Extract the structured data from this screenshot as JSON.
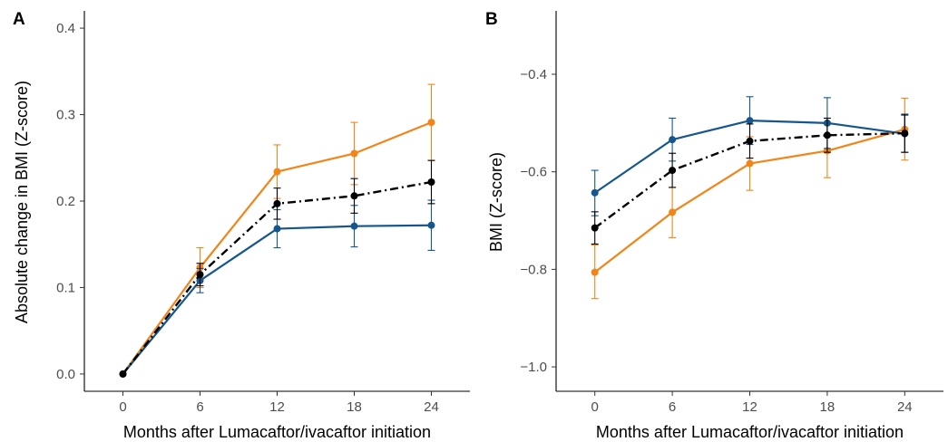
{
  "colors": {
    "orange": "#F28418",
    "blue": "#15568C",
    "black": "#000000",
    "tick_text": "#4d4d4d"
  },
  "chart_data": [
    {
      "type": "line",
      "panel_label": "A",
      "xlabel": "Months after Lumacaftor/ivacaftor initiation",
      "ylabel": "Absolute change in  BMI (Z-score)",
      "x": [
        0,
        6,
        12,
        18,
        24
      ],
      "x_ticks": [
        "0",
        "6",
        "12",
        "18",
        "24"
      ],
      "xlim": [
        -3,
        27
      ],
      "ylim": [
        -0.02,
        0.42
      ],
      "y_ticks": [
        0.0,
        0.1,
        0.2,
        0.3,
        0.4
      ],
      "y_tick_labels": [
        "0.0",
        "0.1",
        "0.2",
        "0.3",
        "0.4"
      ],
      "grid": false,
      "legend": "none",
      "series": [
        {
          "color": "orange",
          "style": "solid",
          "values": [
            0.0,
            0.123,
            0.234,
            0.255,
            0.291
          ],
          "err_low": [
            0.0,
            0.1,
            0.203,
            0.219,
            0.247
          ],
          "err_high": [
            0.0,
            0.146,
            0.265,
            0.291,
            0.335
          ]
        },
        {
          "color": "blue",
          "style": "solid",
          "values": [
            0.0,
            0.108,
            0.168,
            0.171,
            0.172
          ],
          "err_low": [
            0.0,
            0.094,
            0.146,
            0.147,
            0.143
          ],
          "err_high": [
            0.0,
            0.122,
            0.19,
            0.195,
            0.201
          ]
        },
        {
          "color": "black",
          "style": "dashdot",
          "values": [
            0.0,
            0.115,
            0.197,
            0.206,
            0.222
          ],
          "err_low": [
            0.0,
            0.102,
            0.179,
            0.186,
            0.197
          ],
          "err_high": [
            0.0,
            0.128,
            0.215,
            0.226,
            0.247
          ]
        }
      ]
    },
    {
      "type": "line",
      "panel_label": "B",
      "xlabel": "Months after Lumacaftor/ivacaftor initiation",
      "ylabel": "BMI (Z-score)",
      "x": [
        0,
        6,
        12,
        18,
        24
      ],
      "x_ticks": [
        "0",
        "6",
        "12",
        "18",
        "24"
      ],
      "xlim": [
        -3,
        27
      ],
      "ylim": [
        -1.05,
        -0.27
      ],
      "y_ticks": [
        -1.0,
        -0.8,
        -0.6,
        -0.4
      ],
      "y_tick_labels": [
        "−1.0",
        "−0.8",
        "−0.6",
        "−0.4"
      ],
      "grid": false,
      "legend": "none",
      "series": [
        {
          "color": "orange",
          "style": "solid",
          "values": [
            -0.806,
            -0.683,
            -0.583,
            -0.557,
            -0.513
          ],
          "err_low": [
            -0.86,
            -0.735,
            -0.638,
            -0.612,
            -0.576
          ],
          "err_high": [
            -0.75,
            -0.632,
            -0.528,
            -0.503,
            -0.449
          ]
        },
        {
          "color": "blue",
          "style": "solid",
          "values": [
            -0.643,
            -0.534,
            -0.495,
            -0.5,
            -0.522
          ],
          "err_low": [
            -0.69,
            -0.578,
            -0.544,
            -0.552,
            -0.56
          ],
          "err_high": [
            -0.597,
            -0.49,
            -0.446,
            -0.448,
            -0.484
          ]
        },
        {
          "color": "black",
          "style": "dashdot",
          "values": [
            -0.715,
            -0.597,
            -0.537,
            -0.525,
            -0.521
          ],
          "err_low": [
            -0.748,
            -0.632,
            -0.572,
            -0.56,
            -0.56
          ],
          "err_high": [
            -0.682,
            -0.562,
            -0.502,
            -0.49,
            -0.482
          ]
        }
      ]
    }
  ]
}
